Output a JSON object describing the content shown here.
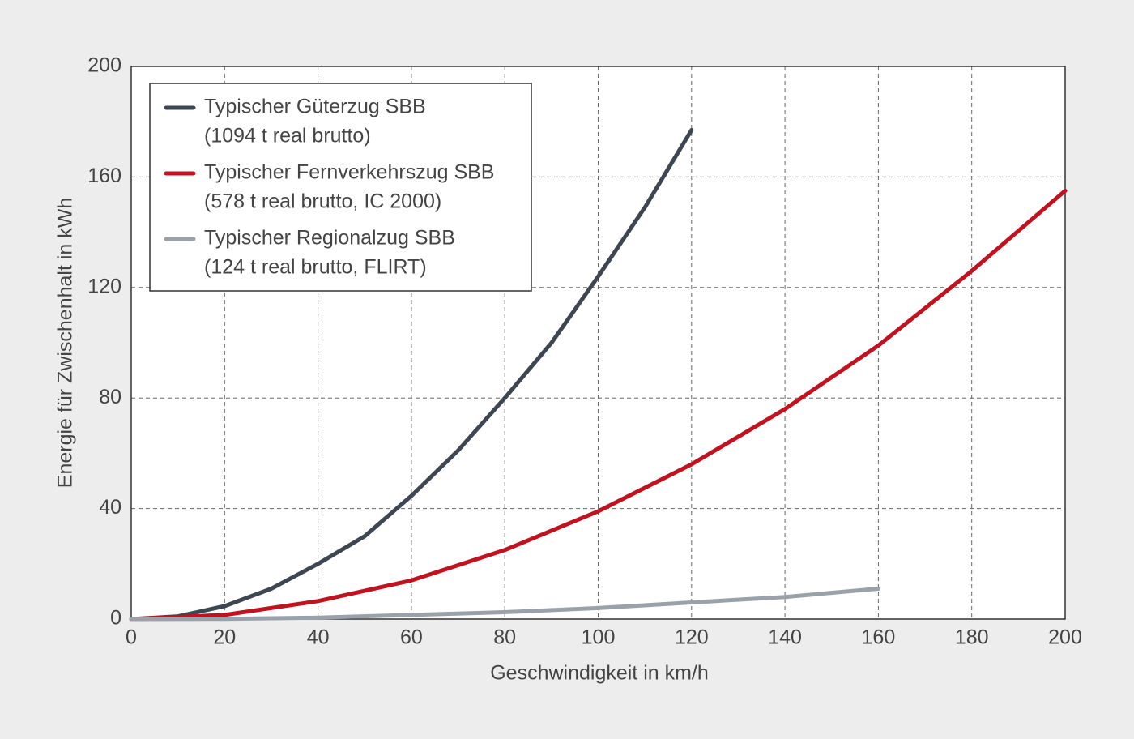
{
  "chart_data": {
    "type": "line",
    "xlabel": "Geschwindigkeit in km/h",
    "ylabel": "Energie für Zwischenhalt in kWh",
    "xlim": [
      0,
      200
    ],
    "xticks": [
      0,
      20,
      40,
      60,
      80,
      100,
      120,
      140,
      160,
      180,
      200
    ],
    "ylim": [
      0,
      200
    ],
    "yticks": [
      0,
      40,
      80,
      120,
      160,
      200
    ],
    "grid": true,
    "legend": "upper left",
    "series": [
      {
        "name": "Typischer Güterzug SBB",
        "description": "(1094 t real brutto)",
        "color": "#3d4651",
        "x": [
          0,
          10,
          20,
          30,
          40,
          50,
          60,
          70,
          80,
          90,
          100,
          110,
          120
        ],
        "values": [
          0,
          1,
          4.7,
          11,
          20,
          30,
          44.6,
          61,
          80,
          100,
          124,
          149,
          177
        ]
      },
      {
        "name": "Typischer Fernverkehrszug SBB",
        "description": "(578 t real brutto, IC 2000)",
        "color": "#c0121f",
        "x": [
          0,
          20,
          40,
          60,
          80,
          100,
          120,
          140,
          160,
          180,
          200
        ],
        "values": [
          0,
          1.5,
          6.5,
          14,
          25,
          39,
          56,
          76,
          99,
          126,
          155
        ]
      },
      {
        "name": "Typischer Regionalzug SBB",
        "description": "(124 t real brutto, FLIRT)",
        "color": "#9aa1a9",
        "x": [
          0,
          20,
          40,
          60,
          80,
          100,
          120,
          140,
          160
        ],
        "values": [
          0,
          0.1,
          0.5,
          1.5,
          2.5,
          4,
          6,
          8,
          11
        ]
      }
    ]
  }
}
